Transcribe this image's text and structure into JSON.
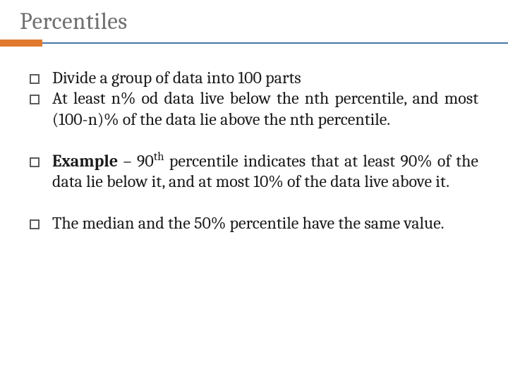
{
  "title": "Percentiles",
  "title_color": "#6f6f6f",
  "title_fontsize": 33,
  "accent_color": "#e07a2f",
  "rule_color": "#4777a8",
  "background_color": "#ffffff",
  "bullet_border_color": "#5b5b5b",
  "text_color": "#1a1a1a",
  "body_fontsize": 24,
  "bullets": [
    {
      "text": "Divide a group of data into 100 parts",
      "bold_prefix": "",
      "rest": "Divide a group of data into 100 parts",
      "justify": false,
      "spacer_after": false
    },
    {
      "text": "At least n% od data live below the nth percentile, and most (100-n)% of the data lie above the nth percentile.",
      "bold_prefix": "",
      "rest": "At least n% od data live below the nth percentile, and most (100-n)% of the data lie above the nth percentile.",
      "justify": true,
      "spacer_after": true
    },
    {
      "text": "Example – 90th percentile indicates that at least 90% of the data lie below it, and at most 10% of the data live above it.",
      "bold_prefix": "Example",
      "rest": " – 90__SUP__th__/SUP__ percentile indicates that at least 90% of the data lie below it, and at most 10% of the data live above it.",
      "justify": true,
      "spacer_after": true
    },
    {
      "text": "The median and the 50% percentile have the same value.",
      "bold_prefix": "",
      "rest": "The median and the 50% percentile have the same value.",
      "justify": true,
      "spacer_after": false
    }
  ]
}
